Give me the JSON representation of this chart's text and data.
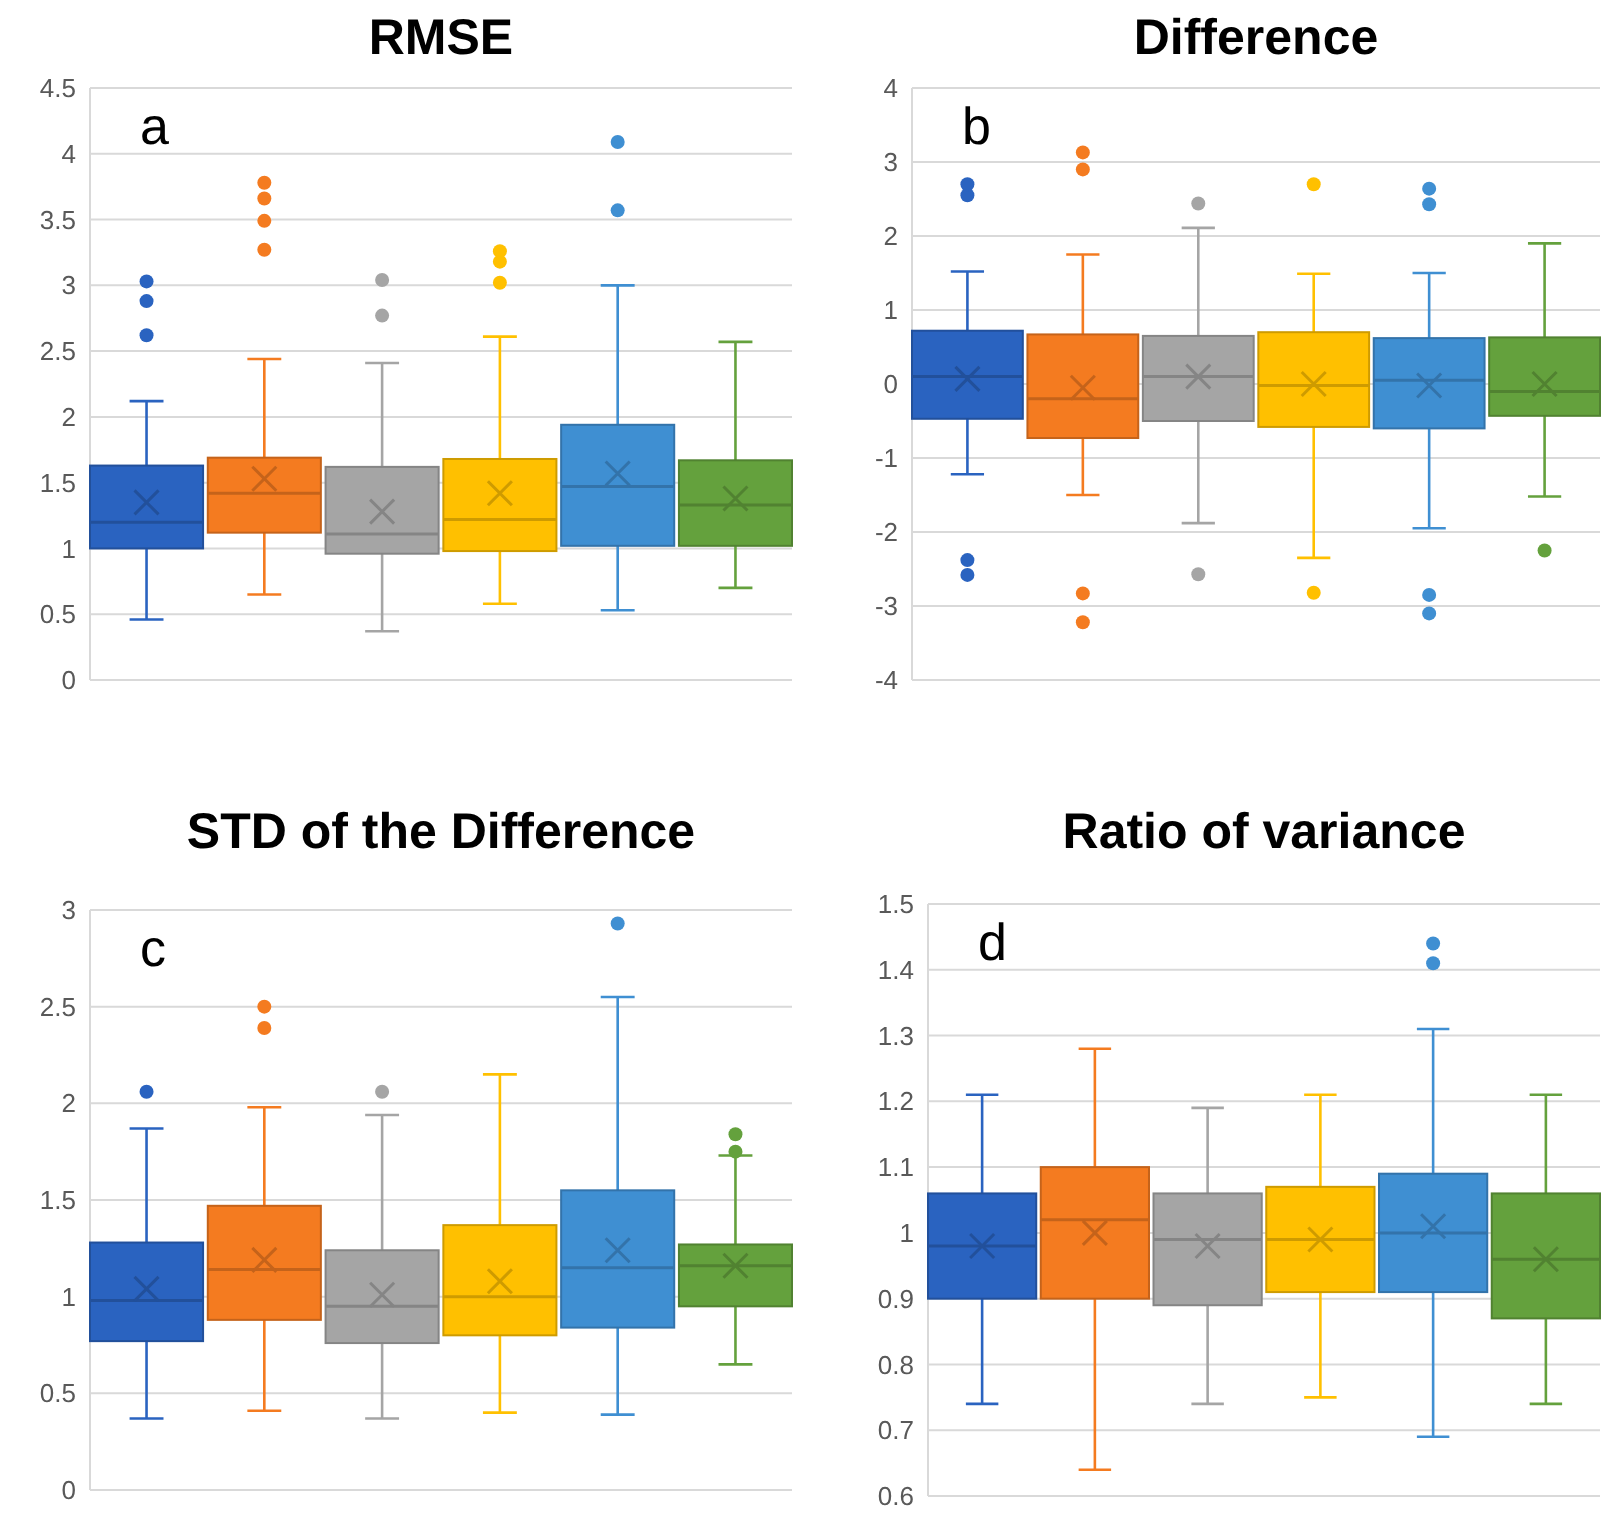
{
  "chart_data": [
    {
      "type": "box",
      "title": "RMSE",
      "annotations": [
        "a"
      ],
      "categories": [
        null,
        null,
        null,
        null,
        null,
        null
      ],
      "colors": [
        "#2a63c0",
        "#f47b20",
        "#a5a5a5",
        "#ffc000",
        "#3f8fd2",
        "#64a13d"
      ],
      "ylim": [
        0,
        4.5
      ],
      "yticks": [
        0,
        0.5,
        1,
        1.5,
        2,
        2.5,
        3,
        3.5,
        4,
        4.5
      ],
      "grid": "y",
      "boxes": [
        {
          "low": 0.46,
          "q1": 1.0,
          "median": 1.2,
          "q3": 1.63,
          "high": 2.12,
          "mean": 1.35,
          "outliers": [
            2.62,
            2.88,
            3.03
          ]
        },
        {
          "low": 0.65,
          "q1": 1.12,
          "median": 1.42,
          "q3": 1.69,
          "high": 2.44,
          "mean": 1.53,
          "outliers": [
            3.27,
            3.49,
            3.66,
            3.78
          ]
        },
        {
          "low": 0.37,
          "q1": 0.96,
          "median": 1.11,
          "q3": 1.62,
          "high": 2.41,
          "mean": 1.28,
          "outliers": [
            2.77,
            3.04
          ]
        },
        {
          "low": 0.58,
          "q1": 0.98,
          "median": 1.22,
          "q3": 1.68,
          "high": 2.61,
          "mean": 1.42,
          "outliers": [
            3.02,
            3.18,
            3.26
          ]
        },
        {
          "low": 0.53,
          "q1": 1.02,
          "median": 1.47,
          "q3": 1.94,
          "high": 3.0,
          "mean": 1.57,
          "outliers": [
            3.57,
            4.09
          ]
        },
        {
          "low": 0.7,
          "q1": 1.02,
          "median": 1.33,
          "q3": 1.67,
          "high": 2.57,
          "mean": 1.38
        }
      ]
    },
    {
      "type": "box",
      "title": "Difference",
      "annotations": [
        "b"
      ],
      "categories": [
        null,
        null,
        null,
        null,
        null,
        null
      ],
      "colors": [
        "#2a63c0",
        "#f47b20",
        "#a5a5a5",
        "#ffc000",
        "#3f8fd2",
        "#64a13d"
      ],
      "ylim": [
        -4,
        4
      ],
      "yticks": [
        -4,
        -3,
        -2,
        -1,
        0,
        1,
        2,
        3,
        4
      ],
      "grid": "y",
      "boxes": [
        {
          "low": -1.22,
          "q1": -0.47,
          "median": 0.1,
          "q3": 0.72,
          "high": 1.52,
          "mean": 0.07,
          "outliers": [
            -2.58,
            -2.38,
            2.55,
            2.7
          ]
        },
        {
          "low": -1.5,
          "q1": -0.73,
          "median": -0.2,
          "q3": 0.67,
          "high": 1.75,
          "mean": -0.05,
          "outliers": [
            -3.22,
            -2.83,
            2.9,
            3.13
          ]
        },
        {
          "low": -1.88,
          "q1": -0.5,
          "median": 0.1,
          "q3": 0.65,
          "high": 2.11,
          "mean": 0.1,
          "outliers": [
            -2.57,
            2.44
          ]
        },
        {
          "low": -2.35,
          "q1": -0.58,
          "median": -0.02,
          "q3": 0.7,
          "high": 1.49,
          "mean": 0.0,
          "outliers": [
            -2.82,
            2.7
          ]
        },
        {
          "low": -1.95,
          "q1": -0.6,
          "median": 0.05,
          "q3": 0.62,
          "high": 1.5,
          "mean": -0.02,
          "outliers": [
            -3.1,
            -2.85,
            2.43,
            2.64
          ]
        },
        {
          "low": -1.52,
          "q1": -0.43,
          "median": -0.1,
          "q3": 0.63,
          "high": 1.9,
          "mean": 0.0,
          "outliers": [
            -2.25
          ]
        }
      ]
    },
    {
      "type": "box",
      "title": "STD of the Difference",
      "annotations": [
        "c"
      ],
      "categories": [
        null,
        null,
        null,
        null,
        null,
        null
      ],
      "colors": [
        "#2a63c0",
        "#f47b20",
        "#a5a5a5",
        "#ffc000",
        "#3f8fd2",
        "#64a13d"
      ],
      "ylim": [
        0,
        3
      ],
      "yticks": [
        0,
        0.5,
        1,
        1.5,
        2,
        2.5,
        3
      ],
      "grid": "y",
      "boxes": [
        {
          "low": 0.37,
          "q1": 0.77,
          "median": 0.98,
          "q3": 1.28,
          "high": 1.87,
          "mean": 1.04,
          "outliers": [
            2.06
          ]
        },
        {
          "low": 0.41,
          "q1": 0.88,
          "median": 1.14,
          "q3": 1.47,
          "high": 1.98,
          "mean": 1.19,
          "outliers": [
            2.39,
            2.5
          ]
        },
        {
          "low": 0.37,
          "q1": 0.76,
          "median": 0.95,
          "q3": 1.24,
          "high": 1.94,
          "mean": 1.01,
          "outliers": [
            2.06
          ]
        },
        {
          "low": 0.4,
          "q1": 0.8,
          "median": 1.0,
          "q3": 1.37,
          "high": 2.15,
          "mean": 1.08
        },
        {
          "low": 0.39,
          "q1": 0.84,
          "median": 1.15,
          "q3": 1.55,
          "high": 2.55,
          "mean": 1.24,
          "outliers": [
            2.93
          ]
        },
        {
          "low": 0.65,
          "q1": 0.95,
          "median": 1.16,
          "q3": 1.27,
          "high": 1.73,
          "mean": 1.16,
          "outliers": [
            1.75,
            1.84
          ]
        }
      ]
    },
    {
      "type": "box",
      "title": "Ratio of variance",
      "annotations": [
        "d"
      ],
      "categories": [
        null,
        null,
        null,
        null,
        null,
        null
      ],
      "colors": [
        "#2a63c0",
        "#f47b20",
        "#a5a5a5",
        "#ffc000",
        "#3f8fd2",
        "#64a13d"
      ],
      "ylim": [
        0.6,
        1.5
      ],
      "yticks": [
        0.6,
        0.7,
        0.8,
        0.9,
        1,
        1.1,
        1.2,
        1.3,
        1.4,
        1.5
      ],
      "grid": "y",
      "boxes": [
        {
          "low": 0.74,
          "q1": 0.9,
          "median": 0.98,
          "q3": 1.06,
          "high": 1.21,
          "mean": 0.98
        },
        {
          "low": 0.64,
          "q1": 0.9,
          "median": 1.02,
          "q3": 1.1,
          "high": 1.28,
          "mean": 1.0
        },
        {
          "low": 0.74,
          "q1": 0.89,
          "median": 0.99,
          "q3": 1.06,
          "high": 1.19,
          "mean": 0.98
        },
        {
          "low": 0.75,
          "q1": 0.91,
          "median": 0.99,
          "q3": 1.07,
          "high": 1.21,
          "mean": 0.99
        },
        {
          "low": 0.69,
          "q1": 0.91,
          "median": 1.0,
          "q3": 1.09,
          "high": 1.31,
          "mean": 1.01,
          "outliers": [
            1.41,
            1.44
          ]
        },
        {
          "low": 0.74,
          "q1": 0.87,
          "median": 0.96,
          "q3": 1.06,
          "high": 1.21,
          "mean": 0.96
        }
      ]
    }
  ]
}
